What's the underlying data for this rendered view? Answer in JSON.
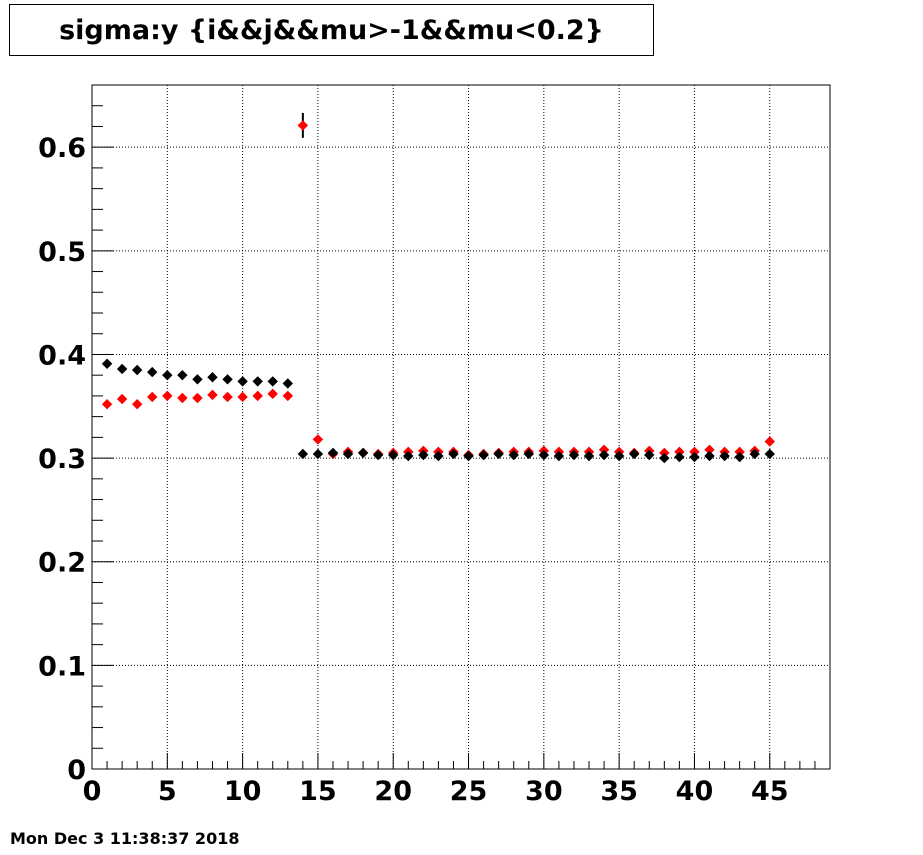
{
  "chart_data": {
    "type": "scatter",
    "title": "sigma:y {i&&j&&mu>-1&&mu<0.2}",
    "xlabel": "",
    "ylabel": "",
    "xlim": [
      0,
      49
    ],
    "ylim": [
      0,
      0.66
    ],
    "grid": true,
    "x_ticks": [
      0,
      5,
      10,
      15,
      20,
      25,
      30,
      35,
      40,
      45
    ],
    "y_ticks": [
      0,
      0.1,
      0.2,
      0.3,
      0.4,
      0.5,
      0.6
    ],
    "x_tick_labels": [
      "0",
      "5",
      "10",
      "15",
      "20",
      "25",
      "30",
      "35",
      "40",
      "45"
    ],
    "y_tick_labels": [
      "0",
      "0.1",
      "0.2",
      "0.3",
      "0.4",
      "0.5",
      "0.6"
    ],
    "x": [
      1,
      2,
      3,
      4,
      5,
      6,
      7,
      8,
      9,
      10,
      11,
      12,
      13,
      14,
      15,
      16,
      17,
      18,
      19,
      20,
      21,
      22,
      23,
      24,
      25,
      26,
      27,
      28,
      29,
      30,
      31,
      32,
      33,
      34,
      35,
      36,
      37,
      38,
      39,
      40,
      41,
      42,
      43,
      44,
      45
    ],
    "series": [
      {
        "color": "#ff0000",
        "values": [
          0.352,
          0.357,
          0.352,
          0.359,
          0.36,
          0.358,
          0.358,
          0.361,
          0.359,
          0.359,
          0.36,
          0.362,
          0.36,
          0.621,
          0.318,
          0.304,
          0.306,
          0.305,
          0.304,
          0.305,
          0.306,
          0.307,
          0.306,
          0.306,
          0.303,
          0.304,
          0.305,
          0.306,
          0.306,
          0.307,
          0.306,
          0.306,
          0.306,
          0.308,
          0.306,
          0.305,
          0.307,
          0.305,
          0.306,
          0.306,
          0.308,
          0.306,
          0.306,
          0.307,
          0.316
        ],
        "errors": [
          0,
          0,
          0,
          0,
          0,
          0,
          0,
          0,
          0,
          0,
          0,
          0,
          0,
          0.012,
          0,
          0,
          0,
          0,
          0,
          0,
          0,
          0,
          0,
          0,
          0,
          0,
          0,
          0,
          0,
          0,
          0,
          0,
          0,
          0,
          0,
          0,
          0,
          0,
          0,
          0,
          0,
          0,
          0,
          0,
          0
        ]
      },
      {
        "color": "#000000",
        "values": [
          0.391,
          0.386,
          0.385,
          0.383,
          0.38,
          0.38,
          0.376,
          0.378,
          0.376,
          0.374,
          0.374,
          0.374,
          0.372,
          0.304,
          0.304,
          0.305,
          0.304,
          0.305,
          0.303,
          0.303,
          0.302,
          0.303,
          0.302,
          0.304,
          0.302,
          0.303,
          0.304,
          0.303,
          0.304,
          0.303,
          0.302,
          0.303,
          0.302,
          0.303,
          0.302,
          0.304,
          0.303,
          0.3,
          0.301,
          0.301,
          0.302,
          0.302,
          0.301,
          0.304,
          0.304
        ],
        "errors": []
      }
    ]
  },
  "footer": {
    "timestamp": "Mon Dec  3 11:38:37 2018"
  }
}
